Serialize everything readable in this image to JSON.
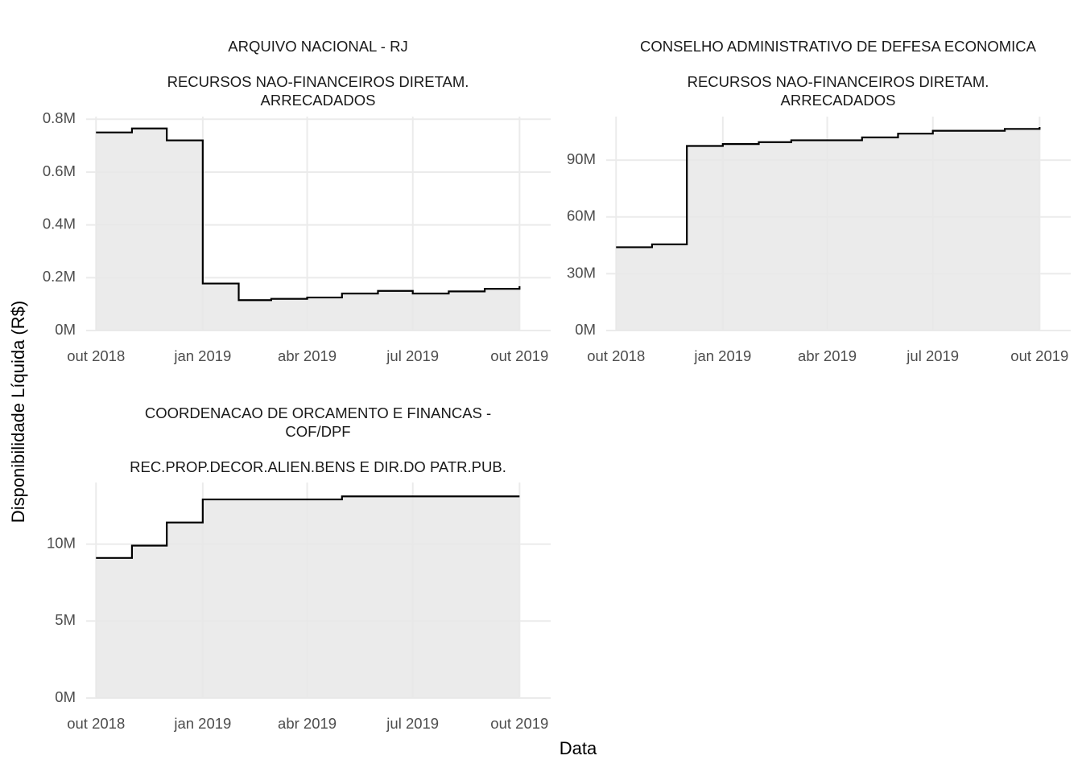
{
  "xlabel": "Data",
  "ylabel": "Disponibilidade Líquida (R$)",
  "chart_data": [
    {
      "type": "area",
      "title": "ARQUIVO NACIONAL - RJ",
      "subtitle": "RECURSOS NAO-FINANCEIROS DIRETAM. ARRECADADOS",
      "step": true,
      "grid": true,
      "color": "#000000",
      "fill": "#e8e8e8",
      "x": [
        "2018-10",
        "2018-11",
        "2018-12",
        "2019-01",
        "2019-02",
        "2019-03",
        "2019-04",
        "2019-05",
        "2019-06",
        "2019-07",
        "2019-08",
        "2019-09",
        "2019-10"
      ],
      "values": [
        750000,
        765000,
        720000,
        178000,
        115000,
        120000,
        125000,
        140000,
        150000,
        140000,
        148000,
        158000,
        168000
      ],
      "xlim": [
        "2018-09",
        "2019-11"
      ],
      "xticks": [
        {
          "value": "2018-10",
          "label": "out 2018"
        },
        {
          "value": "2019-01",
          "label": "jan 2019"
        },
        {
          "value": "2019-04",
          "label": "abr 2019"
        },
        {
          "value": "2019-07",
          "label": "jul 2019"
        },
        {
          "value": "2019-10",
          "label": "out 2019"
        }
      ],
      "ylim": [
        0,
        810000
      ],
      "yticks": [
        {
          "value": 0,
          "label": "0M"
        },
        {
          "value": 200000,
          "label": "0.2M"
        },
        {
          "value": 400000,
          "label": "0.4M"
        },
        {
          "value": 600000,
          "label": "0.6M"
        },
        {
          "value": 800000,
          "label": "0.8M"
        }
      ]
    },
    {
      "type": "area",
      "title": "CONSELHO ADMINISTRATIVO DE DEFESA ECONOMICA",
      "subtitle": "RECURSOS NAO-FINANCEIROS DIRETAM. ARRECADADOS",
      "step": true,
      "grid": true,
      "color": "#000000",
      "fill": "#e8e8e8",
      "x": [
        "2018-10",
        "2018-11",
        "2018-12",
        "2019-01",
        "2019-02",
        "2019-03",
        "2019-04",
        "2019-05",
        "2019-06",
        "2019-07",
        "2019-08",
        "2019-09",
        "2019-10"
      ],
      "values": [
        44000000,
        45500000,
        97500000,
        98500000,
        99500000,
        100500000,
        100500000,
        102000000,
        104000000,
        105500000,
        105500000,
        106500000,
        107500000
      ],
      "xlim": [
        "2018-09",
        "2019-11"
      ],
      "xticks": [
        {
          "value": "2018-10",
          "label": "out 2018"
        },
        {
          "value": "2019-01",
          "label": "jan 2019"
        },
        {
          "value": "2019-04",
          "label": "abr 2019"
        },
        {
          "value": "2019-07",
          "label": "jul 2019"
        },
        {
          "value": "2019-10",
          "label": "out 2019"
        }
      ],
      "ylim": [
        0,
        113000000
      ],
      "yticks": [
        {
          "value": 0,
          "label": "0M"
        },
        {
          "value": 30000000,
          "label": "30M"
        },
        {
          "value": 60000000,
          "label": "60M"
        },
        {
          "value": 90000000,
          "label": "90M"
        }
      ]
    },
    {
      "type": "area",
      "title": "COORDENACAO DE ORCAMENTO E FINANCAS - COF/DPF",
      "subtitle": "REC.PROP.DECOR.ALIEN.BENS E DIR.DO PATR.PUB.",
      "step": true,
      "grid": true,
      "color": "#000000",
      "fill": "#e8e8e8",
      "x": [
        "2018-10",
        "2018-11",
        "2018-12",
        "2019-01",
        "2019-02",
        "2019-03",
        "2019-04",
        "2019-05",
        "2019-06",
        "2019-07",
        "2019-08",
        "2019-09",
        "2019-10"
      ],
      "values": [
        9100000,
        9900000,
        11400000,
        12900000,
        12900000,
        12900000,
        12900000,
        13100000,
        13100000,
        13100000,
        13100000,
        13100000,
        13100000
      ],
      "xlim": [
        "2018-09",
        "2019-11"
      ],
      "xticks": [
        {
          "value": "2018-10",
          "label": "out 2018"
        },
        {
          "value": "2019-01",
          "label": "jan 2019"
        },
        {
          "value": "2019-04",
          "label": "abr 2019"
        },
        {
          "value": "2019-07",
          "label": "jul 2019"
        },
        {
          "value": "2019-10",
          "label": "out 2019"
        }
      ],
      "ylim": [
        0,
        14000000
      ],
      "yticks": [
        {
          "value": 0,
          "label": "0M"
        },
        {
          "value": 5000000,
          "label": "5M"
        },
        {
          "value": 10000000,
          "label": "10M"
        }
      ]
    }
  ]
}
